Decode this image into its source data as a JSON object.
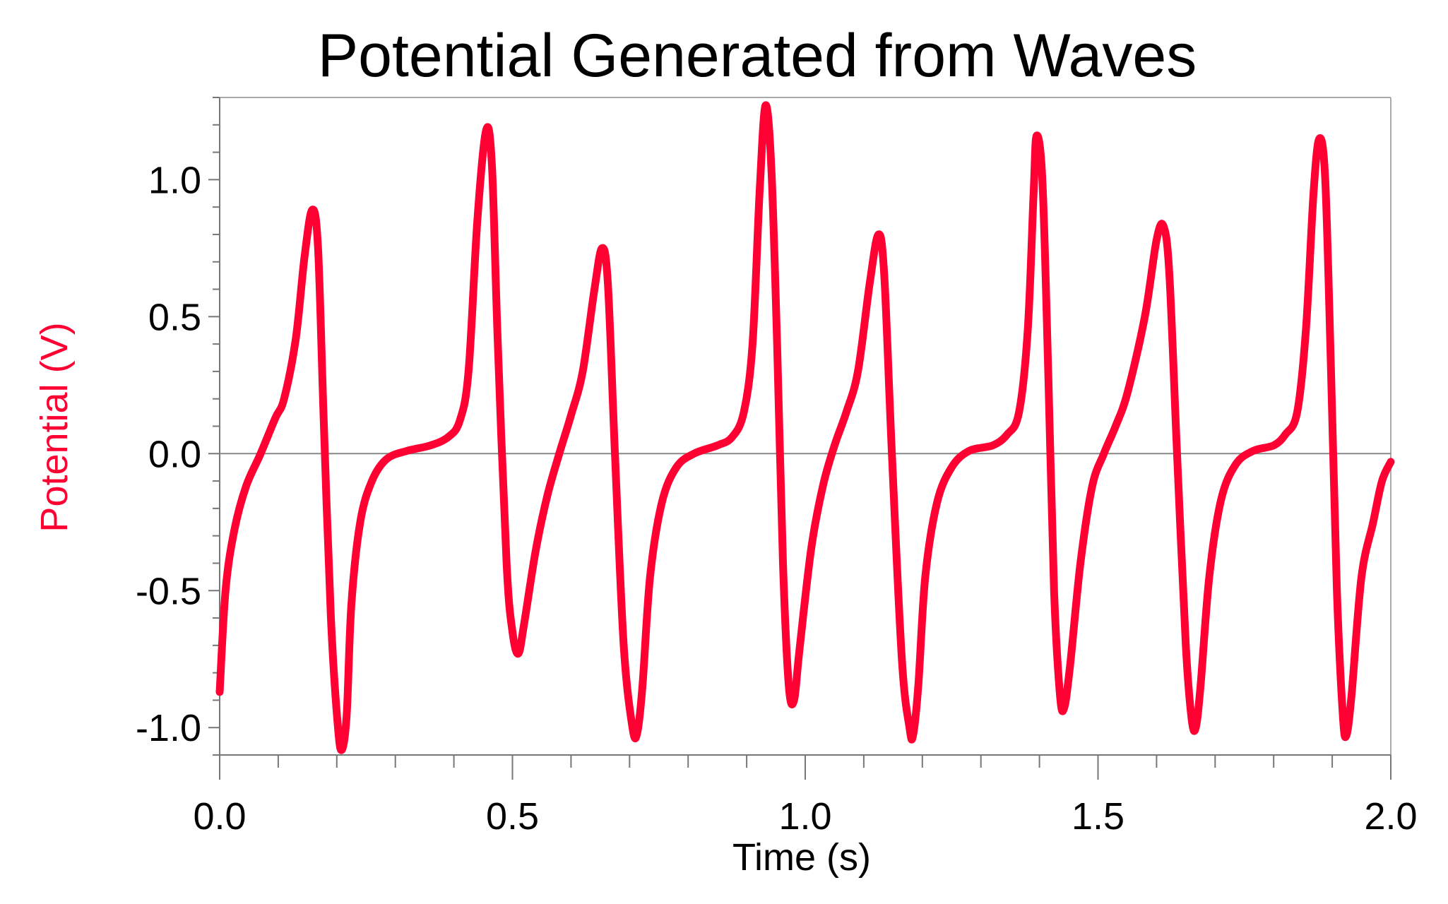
{
  "chart_data": {
    "type": "line",
    "title": "Potential Generated from Waves",
    "xlabel": "Time (s)",
    "ylabel": "Potential (V)",
    "xlim": [
      0,
      2.0
    ],
    "ylim": [
      -1.1,
      1.3
    ],
    "xticks": [
      "0.0",
      "0.5",
      "1.0",
      "1.5",
      "2.0"
    ],
    "xtick_values": [
      0,
      0.5,
      1.0,
      1.5,
      2.0
    ],
    "yticks": [
      "-1.0",
      "-0.5",
      "0.0",
      "0.5",
      "1.0"
    ],
    "ytick_values": [
      -1.0,
      -0.5,
      0.0,
      0.5,
      1.0
    ],
    "x_minor_step": 0.1,
    "y_minor_step": 0.1,
    "zero_line": true,
    "grid": false,
    "series": [
      {
        "name": "Potential",
        "color": "#FF0033",
        "points": [
          [
            0,
            -0.87
          ],
          [
            0.01,
            -0.5
          ],
          [
            0.025,
            -0.28
          ],
          [
            0.045,
            -0.12
          ],
          [
            0.07,
            0.0
          ],
          [
            0.095,
            0.13
          ],
          [
            0.11,
            0.2
          ],
          [
            0.13,
            0.42
          ],
          [
            0.145,
            0.72
          ],
          [
            0.158,
            0.89
          ],
          [
            0.168,
            0.75
          ],
          [
            0.178,
            0.1
          ],
          [
            0.19,
            -0.6
          ],
          [
            0.202,
            -1.0
          ],
          [
            0.209,
            -1.08
          ],
          [
            0.217,
            -0.95
          ],
          [
            0.225,
            -0.55
          ],
          [
            0.24,
            -0.25
          ],
          [
            0.26,
            -0.1
          ],
          [
            0.285,
            -0.02
          ],
          [
            0.32,
            0.01
          ],
          [
            0.36,
            0.03
          ],
          [
            0.39,
            0.06
          ],
          [
            0.41,
            0.12
          ],
          [
            0.425,
            0.3
          ],
          [
            0.44,
            0.85
          ],
          [
            0.455,
            1.18
          ],
          [
            0.465,
            1.05
          ],
          [
            0.475,
            0.4
          ],
          [
            0.49,
            -0.4
          ],
          [
            0.5,
            -0.65
          ],
          [
            0.51,
            -0.73
          ],
          [
            0.52,
            -0.62
          ],
          [
            0.54,
            -0.35
          ],
          [
            0.56,
            -0.15
          ],
          [
            0.58,
            0.0
          ],
          [
            0.6,
            0.14
          ],
          [
            0.62,
            0.3
          ],
          [
            0.64,
            0.6
          ],
          [
            0.653,
            0.75
          ],
          [
            0.663,
            0.62
          ],
          [
            0.675,
            0.0
          ],
          [
            0.69,
            -0.7
          ],
          [
            0.705,
            -1.0
          ],
          [
            0.713,
            -1.02
          ],
          [
            0.722,
            -0.85
          ],
          [
            0.735,
            -0.45
          ],
          [
            0.755,
            -0.18
          ],
          [
            0.78,
            -0.05
          ],
          [
            0.81,
            0.0
          ],
          [
            0.85,
            0.03
          ],
          [
            0.875,
            0.06
          ],
          [
            0.895,
            0.15
          ],
          [
            0.91,
            0.4
          ],
          [
            0.922,
            0.95
          ],
          [
            0.932,
            1.27
          ],
          [
            0.942,
            1.05
          ],
          [
            0.952,
            0.4
          ],
          [
            0.962,
            -0.4
          ],
          [
            0.972,
            -0.85
          ],
          [
            0.981,
            -0.9
          ],
          [
            0.99,
            -0.72
          ],
          [
            1.01,
            -0.35
          ],
          [
            1.03,
            -0.12
          ],
          [
            1.05,
            0.03
          ],
          [
            1.07,
            0.15
          ],
          [
            1.09,
            0.3
          ],
          [
            1.11,
            0.62
          ],
          [
            1.125,
            0.8
          ],
          [
            1.135,
            0.65
          ],
          [
            1.148,
            0.0
          ],
          [
            1.165,
            -0.75
          ],
          [
            1.178,
            -1.0
          ],
          [
            1.184,
            -1.03
          ],
          [
            1.193,
            -0.85
          ],
          [
            1.205,
            -0.45
          ],
          [
            1.225,
            -0.18
          ],
          [
            1.25,
            -0.05
          ],
          [
            1.28,
            0.01
          ],
          [
            1.32,
            0.03
          ],
          [
            1.345,
            0.07
          ],
          [
            1.365,
            0.15
          ],
          [
            1.38,
            0.45
          ],
          [
            1.39,
            0.95
          ],
          [
            1.395,
            1.16
          ],
          [
            1.405,
            1.0
          ],
          [
            1.415,
            0.3
          ],
          [
            1.425,
            -0.5
          ],
          [
            1.435,
            -0.88
          ],
          [
            1.442,
            -0.93
          ],
          [
            1.452,
            -0.78
          ],
          [
            1.47,
            -0.4
          ],
          [
            1.49,
            -0.12
          ],
          [
            1.51,
            0.0
          ],
          [
            1.53,
            0.1
          ],
          [
            1.55,
            0.22
          ],
          [
            1.58,
            0.5
          ],
          [
            1.6,
            0.78
          ],
          [
            1.612,
            0.83
          ],
          [
            1.622,
            0.65
          ],
          [
            1.635,
            0.0
          ],
          [
            1.65,
            -0.7
          ],
          [
            1.66,
            -0.97
          ],
          [
            1.667,
            -1.0
          ],
          [
            1.675,
            -0.85
          ],
          [
            1.69,
            -0.45
          ],
          [
            1.71,
            -0.17
          ],
          [
            1.735,
            -0.04
          ],
          [
            1.765,
            0.01
          ],
          [
            1.8,
            0.03
          ],
          [
            1.82,
            0.07
          ],
          [
            1.84,
            0.15
          ],
          [
            1.855,
            0.45
          ],
          [
            1.868,
            0.95
          ],
          [
            1.878,
            1.15
          ],
          [
            1.888,
            1.0
          ],
          [
            1.898,
            0.3
          ],
          [
            1.908,
            -0.5
          ],
          [
            1.918,
            -0.95
          ],
          [
            1.924,
            -1.03
          ],
          [
            1.933,
            -0.88
          ],
          [
            1.95,
            -0.45
          ],
          [
            1.97,
            -0.25
          ],
          [
            1.985,
            -0.1
          ],
          [
            2.0,
            -0.03
          ]
        ]
      }
    ]
  }
}
